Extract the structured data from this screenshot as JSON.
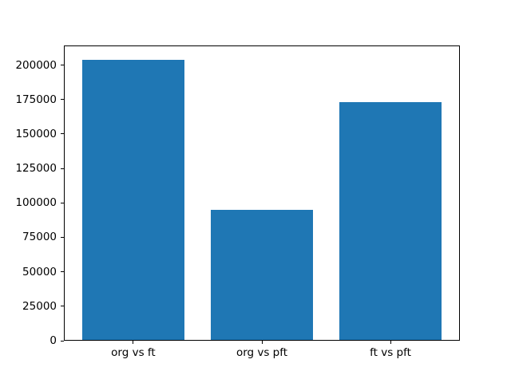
{
  "chart_data": {
    "type": "bar",
    "title": "",
    "xlabel": "",
    "ylabel": "",
    "categories": [
      "org vs ft",
      "org vs pft",
      "ft vs pft"
    ],
    "x": [
      0,
      1,
      2
    ],
    "values": [
      204000,
      95000,
      173000
    ],
    "bar_width": 0.8,
    "bar_color": "#1f77b4",
    "axes_color": "#000000",
    "background_color": "#ffffff",
    "xlim": [
      -0.54,
      2.54
    ],
    "ylim": [
      0,
      214200
    ],
    "yticks": [
      0,
      25000,
      50000,
      75000,
      100000,
      125000,
      150000,
      175000,
      200000
    ],
    "grid": false,
    "legend": null
  }
}
